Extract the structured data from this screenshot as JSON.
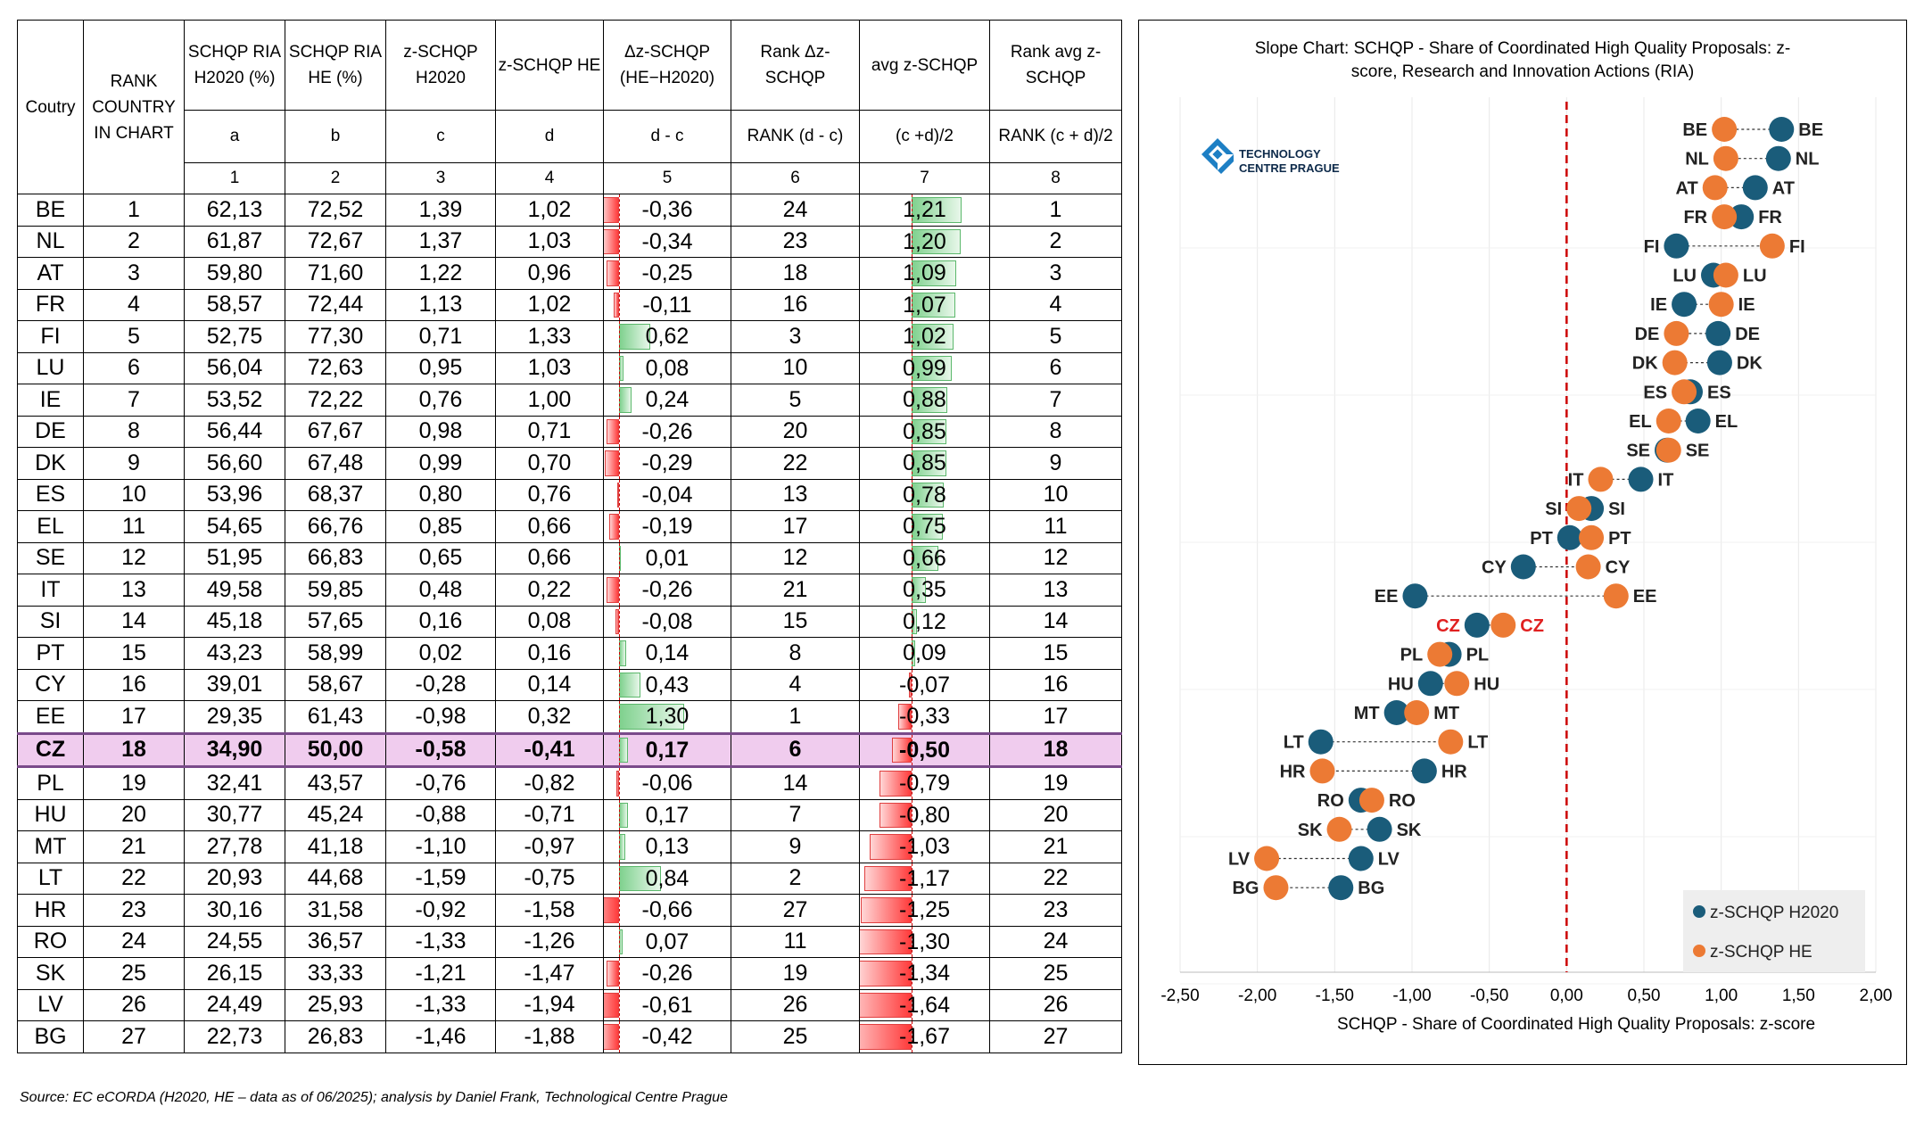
{
  "table": {
    "headers": {
      "country": "Coutry",
      "rank": "RANK COUNTRY IN CHART",
      "a": "SCHQP RIA H2020 (%)",
      "b": "SCHQP RIA HE (%)",
      "c": "z-SCHQP H2020",
      "d": "z-SCHQP HE",
      "dz": "Δz-SCHQP (HE−H2020)",
      "rdz": "Rank Δz-SCHQP",
      "avg": "avg z-SCHQP",
      "ravg": "Rank avg z-SCHQP"
    },
    "subheaders": [
      "a",
      "b",
      "c",
      "d",
      "d - c",
      "RANK (d - c)",
      "(c +d)/2",
      "RANK (c + d)/2"
    ],
    "colnums": [
      "1",
      "2",
      "3",
      "4",
      "5",
      "6",
      "7",
      "8"
    ],
    "rows": [
      [
        "BE",
        "1",
        "62,13",
        "72,52",
        "1,39",
        "1,02",
        "-0,36",
        "24",
        "1,21",
        "1"
      ],
      [
        "NL",
        "2",
        "61,87",
        "72,67",
        "1,37",
        "1,03",
        "-0,34",
        "23",
        "1,20",
        "2"
      ],
      [
        "AT",
        "3",
        "59,80",
        "71,60",
        "1,22",
        "0,96",
        "-0,25",
        "18",
        "1,09",
        "3"
      ],
      [
        "FR",
        "4",
        "58,57",
        "72,44",
        "1,13",
        "1,02",
        "-0,11",
        "16",
        "1,07",
        "4"
      ],
      [
        "FI",
        "5",
        "52,75",
        "77,30",
        "0,71",
        "1,33",
        "0,62",
        "3",
        "1,02",
        "5"
      ],
      [
        "LU",
        "6",
        "56,04",
        "72,63",
        "0,95",
        "1,03",
        "0,08",
        "10",
        "0,99",
        "6"
      ],
      [
        "IE",
        "7",
        "53,52",
        "72,22",
        "0,76",
        "1,00",
        "0,24",
        "5",
        "0,88",
        "7"
      ],
      [
        "DE",
        "8",
        "56,44",
        "67,67",
        "0,98",
        "0,71",
        "-0,26",
        "20",
        "0,85",
        "8"
      ],
      [
        "DK",
        "9",
        "56,60",
        "67,48",
        "0,99",
        "0,70",
        "-0,29",
        "22",
        "0,85",
        "9"
      ],
      [
        "ES",
        "10",
        "53,96",
        "68,37",
        "0,80",
        "0,76",
        "-0,04",
        "13",
        "0,78",
        "10"
      ],
      [
        "EL",
        "11",
        "54,65",
        "66,76",
        "0,85",
        "0,66",
        "-0,19",
        "17",
        "0,75",
        "11"
      ],
      [
        "SE",
        "12",
        "51,95",
        "66,83",
        "0,65",
        "0,66",
        "0,01",
        "12",
        "0,66",
        "12"
      ],
      [
        "IT",
        "13",
        "49,58",
        "59,85",
        "0,48",
        "0,22",
        "-0,26",
        "21",
        "0,35",
        "13"
      ],
      [
        "SI",
        "14",
        "45,18",
        "57,65",
        "0,16",
        "0,08",
        "-0,08",
        "15",
        "0,12",
        "14"
      ],
      [
        "PT",
        "15",
        "43,23",
        "58,99",
        "0,02",
        "0,16",
        "0,14",
        "8",
        "0,09",
        "15"
      ],
      [
        "CY",
        "16",
        "39,01",
        "58,67",
        "-0,28",
        "0,14",
        "0,43",
        "4",
        "-0,07",
        "16"
      ],
      [
        "EE",
        "17",
        "29,35",
        "61,43",
        "-0,98",
        "0,32",
        "1,30",
        "1",
        "-0,33",
        "17"
      ],
      [
        "CZ",
        "18",
        "34,90",
        "50,00",
        "-0,58",
        "-0,41",
        "0,17",
        "6",
        "-0,50",
        "18"
      ],
      [
        "PL",
        "19",
        "32,41",
        "43,57",
        "-0,76",
        "-0,82",
        "-0,06",
        "14",
        "-0,79",
        "19"
      ],
      [
        "HU",
        "20",
        "30,77",
        "45,24",
        "-0,88",
        "-0,71",
        "0,17",
        "7",
        "-0,80",
        "20"
      ],
      [
        "MT",
        "21",
        "27,78",
        "41,18",
        "-1,10",
        "-0,97",
        "0,13",
        "9",
        "-1,03",
        "21"
      ],
      [
        "LT",
        "22",
        "20,93",
        "44,68",
        "-1,59",
        "-0,75",
        "0,84",
        "2",
        "-1,17",
        "22"
      ],
      [
        "HR",
        "23",
        "30,16",
        "31,58",
        "-0,92",
        "-1,58",
        "-0,66",
        "27",
        "-1,25",
        "23"
      ],
      [
        "RO",
        "24",
        "24,55",
        "36,57",
        "-1,33",
        "-1,26",
        "0,07",
        "11",
        "-1,30",
        "24"
      ],
      [
        "SK",
        "25",
        "26,15",
        "33,33",
        "-1,21",
        "-1,47",
        "-0,26",
        "19",
        "-1,34",
        "25"
      ],
      [
        "LV",
        "26",
        "24,49",
        "25,93",
        "-1,33",
        "-1,94",
        "-0,61",
        "26",
        "-1,64",
        "26"
      ],
      [
        "BG",
        "27",
        "22,73",
        "26,83",
        "-1,46",
        "-1,88",
        "-0,42",
        "25",
        "-1,67",
        "27"
      ]
    ],
    "highlight_country": "CZ"
  },
  "chart_data": {
    "type": "scatter",
    "subtype": "slope-dumbbell",
    "title": "Slope Chart: SCHQP - Share of Coordinated High Quality Proposals: z-score, Research and Innovation Actions (RIA)",
    "xlabel": "SCHQP - Share of Coordinated High Quality Proposals: z-score",
    "ylabel": "",
    "xlim": [
      -2.5,
      2.0
    ],
    "xticks": [
      "-2,50",
      "-2,00",
      "-1,50",
      "-1,00",
      "-0,50",
      "0,00",
      "0,50",
      "1,00",
      "1,50",
      "2,00"
    ],
    "xtick_values": [
      -2.5,
      -2.0,
      -1.5,
      -1.0,
      -0.5,
      0.0,
      0.5,
      1.0,
      1.5,
      2.0
    ],
    "reference_line": 0.0,
    "countries": [
      "BE",
      "NL",
      "AT",
      "FR",
      "FI",
      "LU",
      "IE",
      "DE",
      "DK",
      "ES",
      "EL",
      "SE",
      "IT",
      "SI",
      "PT",
      "CY",
      "EE",
      "CZ",
      "PL",
      "HU",
      "MT",
      "LT",
      "HR",
      "RO",
      "SK",
      "LV",
      "BG"
    ],
    "highlight": "CZ",
    "series": [
      {
        "name": "z-SCHQP H2020",
        "color": "#1a5c7a",
        "values": [
          1.39,
          1.37,
          1.22,
          1.13,
          0.71,
          0.95,
          0.76,
          0.98,
          0.99,
          0.8,
          0.85,
          0.65,
          0.48,
          0.16,
          0.02,
          -0.28,
          -0.98,
          -0.58,
          -0.76,
          -0.88,
          -1.1,
          -1.59,
          -0.92,
          -1.33,
          -1.21,
          -1.33,
          -1.46
        ]
      },
      {
        "name": "z-SCHQP HE",
        "color": "#ec7a34",
        "values": [
          1.02,
          1.03,
          0.96,
          1.02,
          1.33,
          1.03,
          1.0,
          0.71,
          0.7,
          0.76,
          0.66,
          0.66,
          0.22,
          0.08,
          0.16,
          0.14,
          0.32,
          -0.41,
          -0.82,
          -0.71,
          -0.97,
          -0.75,
          -1.58,
          -1.26,
          -1.47,
          -1.94,
          -1.88
        ]
      }
    ],
    "legend": [
      "z-SCHQP H2020",
      "z-SCHQP HE"
    ],
    "legend_position": "bottom-right",
    "logo_text": [
      "TECHNOLOGY",
      "CENTRE PRAGUE"
    ]
  },
  "source": "Source: EC eCORDA (H2020, HE – data as of 06/2025); analysis by Daniel Frank, Technological Centre Prague",
  "colors": {
    "h2020": "#1a5c7a",
    "he": "#ec7a34",
    "highlight_text": "#e02020",
    "zero_line": "#cc0000",
    "highlight_row": "#f0ccee"
  }
}
